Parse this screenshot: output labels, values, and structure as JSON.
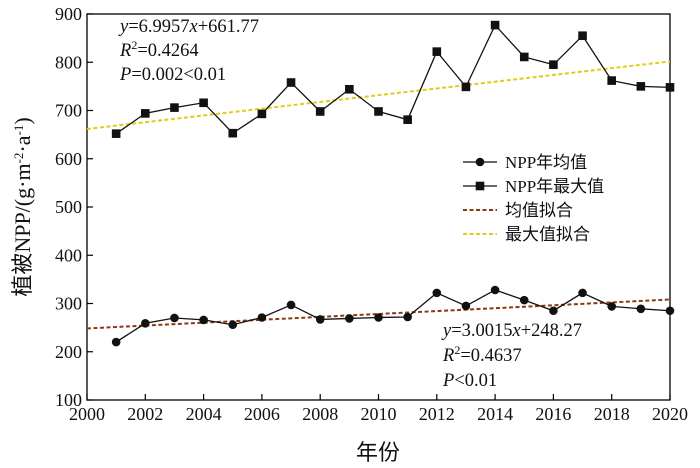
{
  "chart_data": {
    "type": "line",
    "xlabel": "年份",
    "ylabel": "植被NPP/(g·m⁻²·a⁻¹)",
    "xlim": [
      2000,
      2020
    ],
    "ylim": [
      100,
      900
    ],
    "xticks": [
      2000,
      2002,
      2004,
      2006,
      2008,
      2010,
      2012,
      2014,
      2016,
      2018,
      2020
    ],
    "yticks": [
      100,
      200,
      300,
      400,
      500,
      600,
      700,
      800,
      900
    ],
    "x": [
      2001,
      2002,
      2003,
      2004,
      2005,
      2006,
      2007,
      2008,
      2009,
      2010,
      2011,
      2012,
      2013,
      2014,
      2015,
      2016,
      2017,
      2018,
      2019,
      2020
    ],
    "series": [
      {
        "name": "NPP年均值",
        "marker": "circle",
        "color": "#111111",
        "values": [
          220,
          259,
          270,
          266,
          256,
          271,
          297,
          267,
          269,
          271,
          272,
          322,
          295,
          328,
          307,
          285,
          322,
          294,
          289,
          285
        ]
      },
      {
        "name": "NPP年最大值",
        "marker": "square",
        "color": "#111111",
        "values": [
          652,
          694,
          706,
          716,
          653,
          693,
          758,
          698,
          744,
          698,
          681,
          822,
          749,
          877,
          811,
          795,
          855,
          762,
          750,
          748
        ]
      }
    ],
    "fits": [
      {
        "name": "均值拟合",
        "color": "#8B3A0F",
        "slope": 3.0015,
        "intercept_at_2000": 248.27,
        "x_range": [
          2000,
          2020
        ]
      },
      {
        "name": "最大值拟合",
        "color": "#E2CC14",
        "slope": 6.9957,
        "intercept_at_2000": 661.77,
        "x_range": [
          2000,
          2020
        ]
      }
    ],
    "annotations": {
      "max": {
        "line1_var": "y",
        "line1_rest": "=6.9957",
        "line1_x": "x",
        "line1_end": "+661.77",
        "line2_var": "R",
        "line2_sup": "2",
        "line2_rest": "=0.4264",
        "line3_var": "P",
        "line3_rest": "=0.002<0.01"
      },
      "mean": {
        "line1_var": "y",
        "line1_rest": "=3.0015",
        "line1_x": "x",
        "line1_end": "+248.27",
        "line2_var": "R",
        "line2_sup": "2",
        "line2_rest": "=0.4637",
        "line3_var": "P",
        "line3_rest": "<0.01"
      }
    },
    "legend": {
      "position": "center-right",
      "entries": [
        "NPP年均值",
        "NPP年最大值",
        "均值拟合",
        "最大值拟合"
      ]
    },
    "grid": false
  }
}
